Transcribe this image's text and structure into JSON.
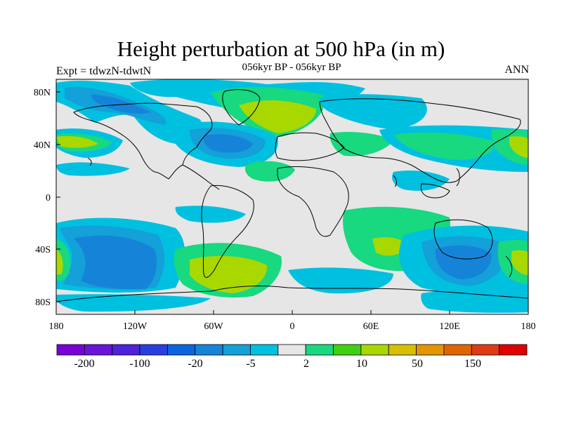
{
  "title": "Height perturbation at 500 hPa (in m)",
  "subtitle": "056kyr BP - 056kyr BP",
  "left_label": "Expt = tdwzN-tdwtN",
  "right_label": "ANN",
  "map": {
    "projection": "cylindrical-equidistant",
    "lon_range": [
      -180,
      180
    ],
    "lat_range": [
      -90,
      90
    ],
    "x_ticks": [
      "180",
      "120W",
      "60W",
      "0",
      "60E",
      "120E",
      "180"
    ],
    "y_ticks": [
      "80N",
      "40N",
      "0",
      "40S",
      "80S"
    ],
    "background_color": "#e6e6e6"
  },
  "colorbar": {
    "colors": [
      "#7a00d8",
      "#6a14d8",
      "#4f22dc",
      "#2a3ee0",
      "#0a64e0",
      "#1584d8",
      "#14a0d8",
      "#00c0e0",
      "#e6e6e6",
      "#18d880",
      "#40d010",
      "#a8d800",
      "#d8c000",
      "#e49600",
      "#e06400",
      "#e03a14",
      "#e00000"
    ],
    "labels": [
      "-200",
      "-100",
      "-20",
      "-5",
      "2",
      "10",
      "50",
      "150"
    ]
  }
}
